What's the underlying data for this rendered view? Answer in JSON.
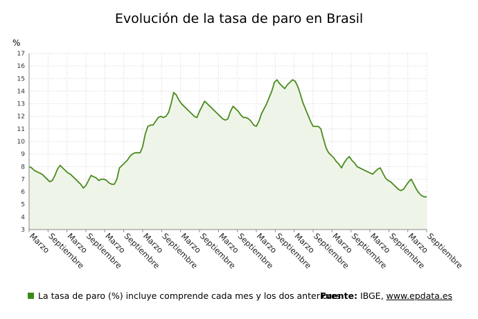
{
  "chart_data": {
    "type": "area",
    "title": "Evolución de la tasa de paro en Brasil",
    "ylabel": "%",
    "ylim": [
      3,
      17
    ],
    "yticks": [
      3,
      4,
      5,
      6,
      7,
      8,
      9,
      10,
      11,
      12,
      13,
      14,
      15,
      16,
      17
    ],
    "x_tick_labels": [
      "Marzo",
      "Septiembre",
      "Marzo",
      "Septiembre",
      "Marzo",
      "Septiembre",
      "Marzo",
      "Septiembre",
      "Marzo",
      "Septiembre",
      "Marzo",
      "Septiembre",
      "Marzo",
      "Septiembre",
      "Marzo",
      "Septiembre",
      "Marzo",
      "Septiembre",
      "Marzo",
      "Septiembre",
      "Marzo",
      "Septiembre"
    ],
    "grid": true,
    "series": [
      {
        "color": "#4a8a1e",
        "fill": "#eef5e8",
        "values": [
          8.0,
          7.9,
          7.7,
          7.6,
          7.5,
          7.4,
          7.2,
          7.0,
          6.8,
          6.9,
          7.3,
          7.8,
          8.1,
          7.9,
          7.7,
          7.5,
          7.4,
          7.2,
          7.0,
          6.8,
          6.6,
          6.3,
          6.5,
          6.9,
          7.3,
          7.2,
          7.1,
          6.9,
          7.0,
          7.0,
          6.9,
          6.7,
          6.6,
          6.6,
          7.0,
          7.9,
          8.1,
          8.3,
          8.5,
          8.8,
          9.0,
          9.1,
          9.1,
          9.1,
          9.6,
          10.6,
          11.2,
          11.3,
          11.3,
          11.6,
          11.9,
          12.0,
          11.9,
          12.0,
          12.3,
          13.0,
          13.9,
          13.7,
          13.3,
          13.0,
          12.8,
          12.6,
          12.4,
          12.2,
          12.0,
          11.9,
          12.4,
          12.8,
          13.2,
          13.0,
          12.8,
          12.6,
          12.4,
          12.2,
          12.0,
          11.8,
          11.7,
          11.8,
          12.4,
          12.8,
          12.6,
          12.4,
          12.1,
          11.9,
          11.9,
          11.8,
          11.6,
          11.3,
          11.2,
          11.6,
          12.2,
          12.6,
          13.0,
          13.5,
          14.0,
          14.7,
          14.9,
          14.6,
          14.4,
          14.2,
          14.5,
          14.7,
          14.9,
          14.8,
          14.4,
          13.8,
          13.1,
          12.6,
          12.1,
          11.6,
          11.2,
          11.2,
          11.2,
          11.0,
          10.2,
          9.5,
          9.1,
          8.9,
          8.7,
          8.4,
          8.2,
          7.9,
          8.3,
          8.6,
          8.8,
          8.5,
          8.3,
          8.0,
          7.9,
          7.8,
          7.7,
          7.6,
          7.5,
          7.4,
          7.6,
          7.8,
          7.9,
          7.5,
          7.1,
          6.9,
          6.8,
          6.6,
          6.4,
          6.2,
          6.1,
          6.2,
          6.5,
          6.8,
          7.0,
          6.6,
          6.2,
          5.9,
          5.7,
          5.6,
          5.6
        ]
      }
    ]
  },
  "legend": {
    "note": "La tasa de paro (%) incluye comprende cada mes y los dos anteriores"
  },
  "source": {
    "label": "Fuente:",
    "text": "IBGE,",
    "link": "www.epdata.es"
  }
}
